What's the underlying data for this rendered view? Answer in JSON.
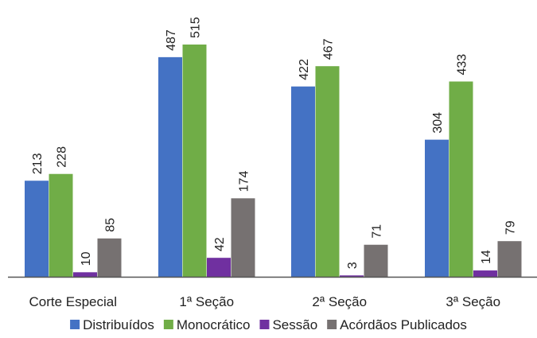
{
  "chart_data": {
    "type": "bar",
    "title": "",
    "xlabel": "",
    "ylabel": "",
    "categories": [
      "Corte Especial",
      "1ª Seção",
      "2ª Seção",
      "3ª Seção"
    ],
    "series": [
      {
        "name": "Distribuídos",
        "color": "#4472C4",
        "values": [
          213,
          487,
          422,
          304
        ]
      },
      {
        "name": "Monocrático",
        "color": "#70AD47",
        "values": [
          228,
          515,
          467,
          433
        ]
      },
      {
        "name": "Sessão",
        "color": "#7030A0",
        "values": [
          10,
          42,
          3,
          14
        ]
      },
      {
        "name": "Acórdãos Publicados",
        "color": "#767171",
        "values": [
          85,
          174,
          71,
          79
        ]
      }
    ],
    "ylim": [
      0,
      560
    ],
    "grid": false,
    "data_labels": true,
    "legend_position": "bottom"
  }
}
